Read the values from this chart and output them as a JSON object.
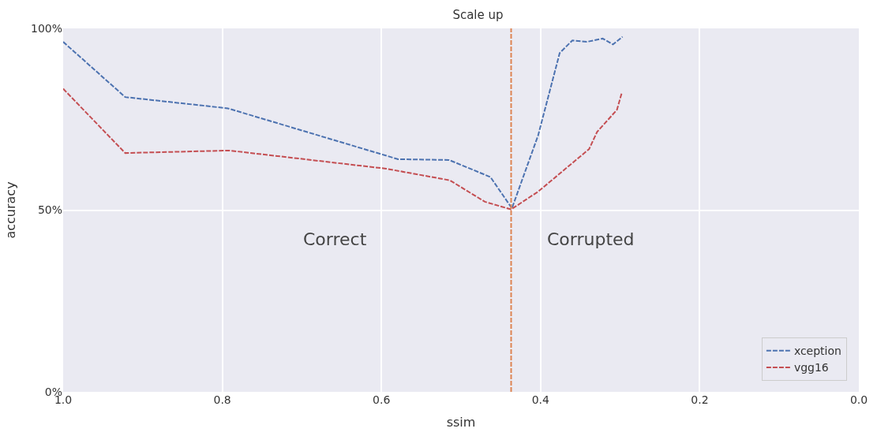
{
  "chart_data": {
    "type": "line",
    "title": "Scale up",
    "xlabel": "ssim",
    "ylabel": "accuracy",
    "series": [
      {
        "name": "xception",
        "color": "#4c72b0",
        "x": [
          1.0,
          0.922,
          0.793,
          0.579,
          0.515,
          0.463,
          0.436,
          0.403,
          0.376,
          0.36,
          0.342,
          0.322,
          0.309,
          0.297
        ],
        "values": [
          96.3,
          81.1,
          78.0,
          64.0,
          63.8,
          59.1,
          50.5,
          70.6,
          93.2,
          96.7,
          96.3,
          97.2,
          95.6,
          97.7
        ]
      },
      {
        "name": "vgg16",
        "color": "#c44e52",
        "x": [
          1.0,
          0.922,
          0.791,
          0.594,
          0.514,
          0.47,
          0.437,
          0.403,
          0.339,
          0.329,
          0.304,
          0.298
        ],
        "values": [
          83.4,
          65.7,
          66.4,
          61.4,
          58.2,
          52.3,
          50.2,
          55.1,
          66.8,
          71.5,
          77.6,
          82.2
        ]
      }
    ],
    "line_style": "dashed",
    "marker": "none",
    "xlim": [
      1.0,
      0.0
    ],
    "xticks": [
      {
        "value": 1.0,
        "label": "1.0"
      },
      {
        "value": 0.8,
        "label": "0.8"
      },
      {
        "value": 0.6,
        "label": "0.6"
      },
      {
        "value": 0.4,
        "label": "0.4"
      },
      {
        "value": 0.2,
        "label": "0.2"
      },
      {
        "value": 0.0,
        "label": "0.0"
      }
    ],
    "ylim": [
      0,
      100
    ],
    "yticks": [
      {
        "value": 0,
        "label": "0%"
      },
      {
        "value": 50,
        "label": "50%"
      },
      {
        "value": 100,
        "label": "100%"
      }
    ],
    "ref_lines": [
      {
        "axis": "x",
        "value": 0.437,
        "color": "#dd8452",
        "line_style": "dashed"
      }
    ],
    "annotations": [
      "Correct",
      "Corrupted"
    ],
    "grid": true,
    "legend": "bottom right"
  }
}
